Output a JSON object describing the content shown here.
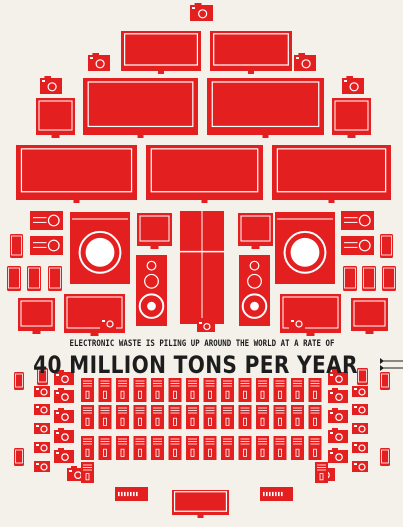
{
  "headline": {
    "lead_text": "ELECTRONIC WASTE IS PILING UP AROUND THE WORLD AT A RATE OF",
    "figure_text": "40 MILLION TONS PER YEAR"
  },
  "colors": {
    "background": "#f3f1ea",
    "device_red": "#e41f20",
    "highlight_white": "#ffffff",
    "text_black": "#1d1d1d"
  },
  "icons": [
    "camera-icon",
    "monitor-icon",
    "television-icon",
    "flatscreen-tv-icon",
    "radio-icon",
    "washing-machine-icon",
    "speaker-icon",
    "refrigerator-icon",
    "phone-icon",
    "game-console-icon"
  ]
}
